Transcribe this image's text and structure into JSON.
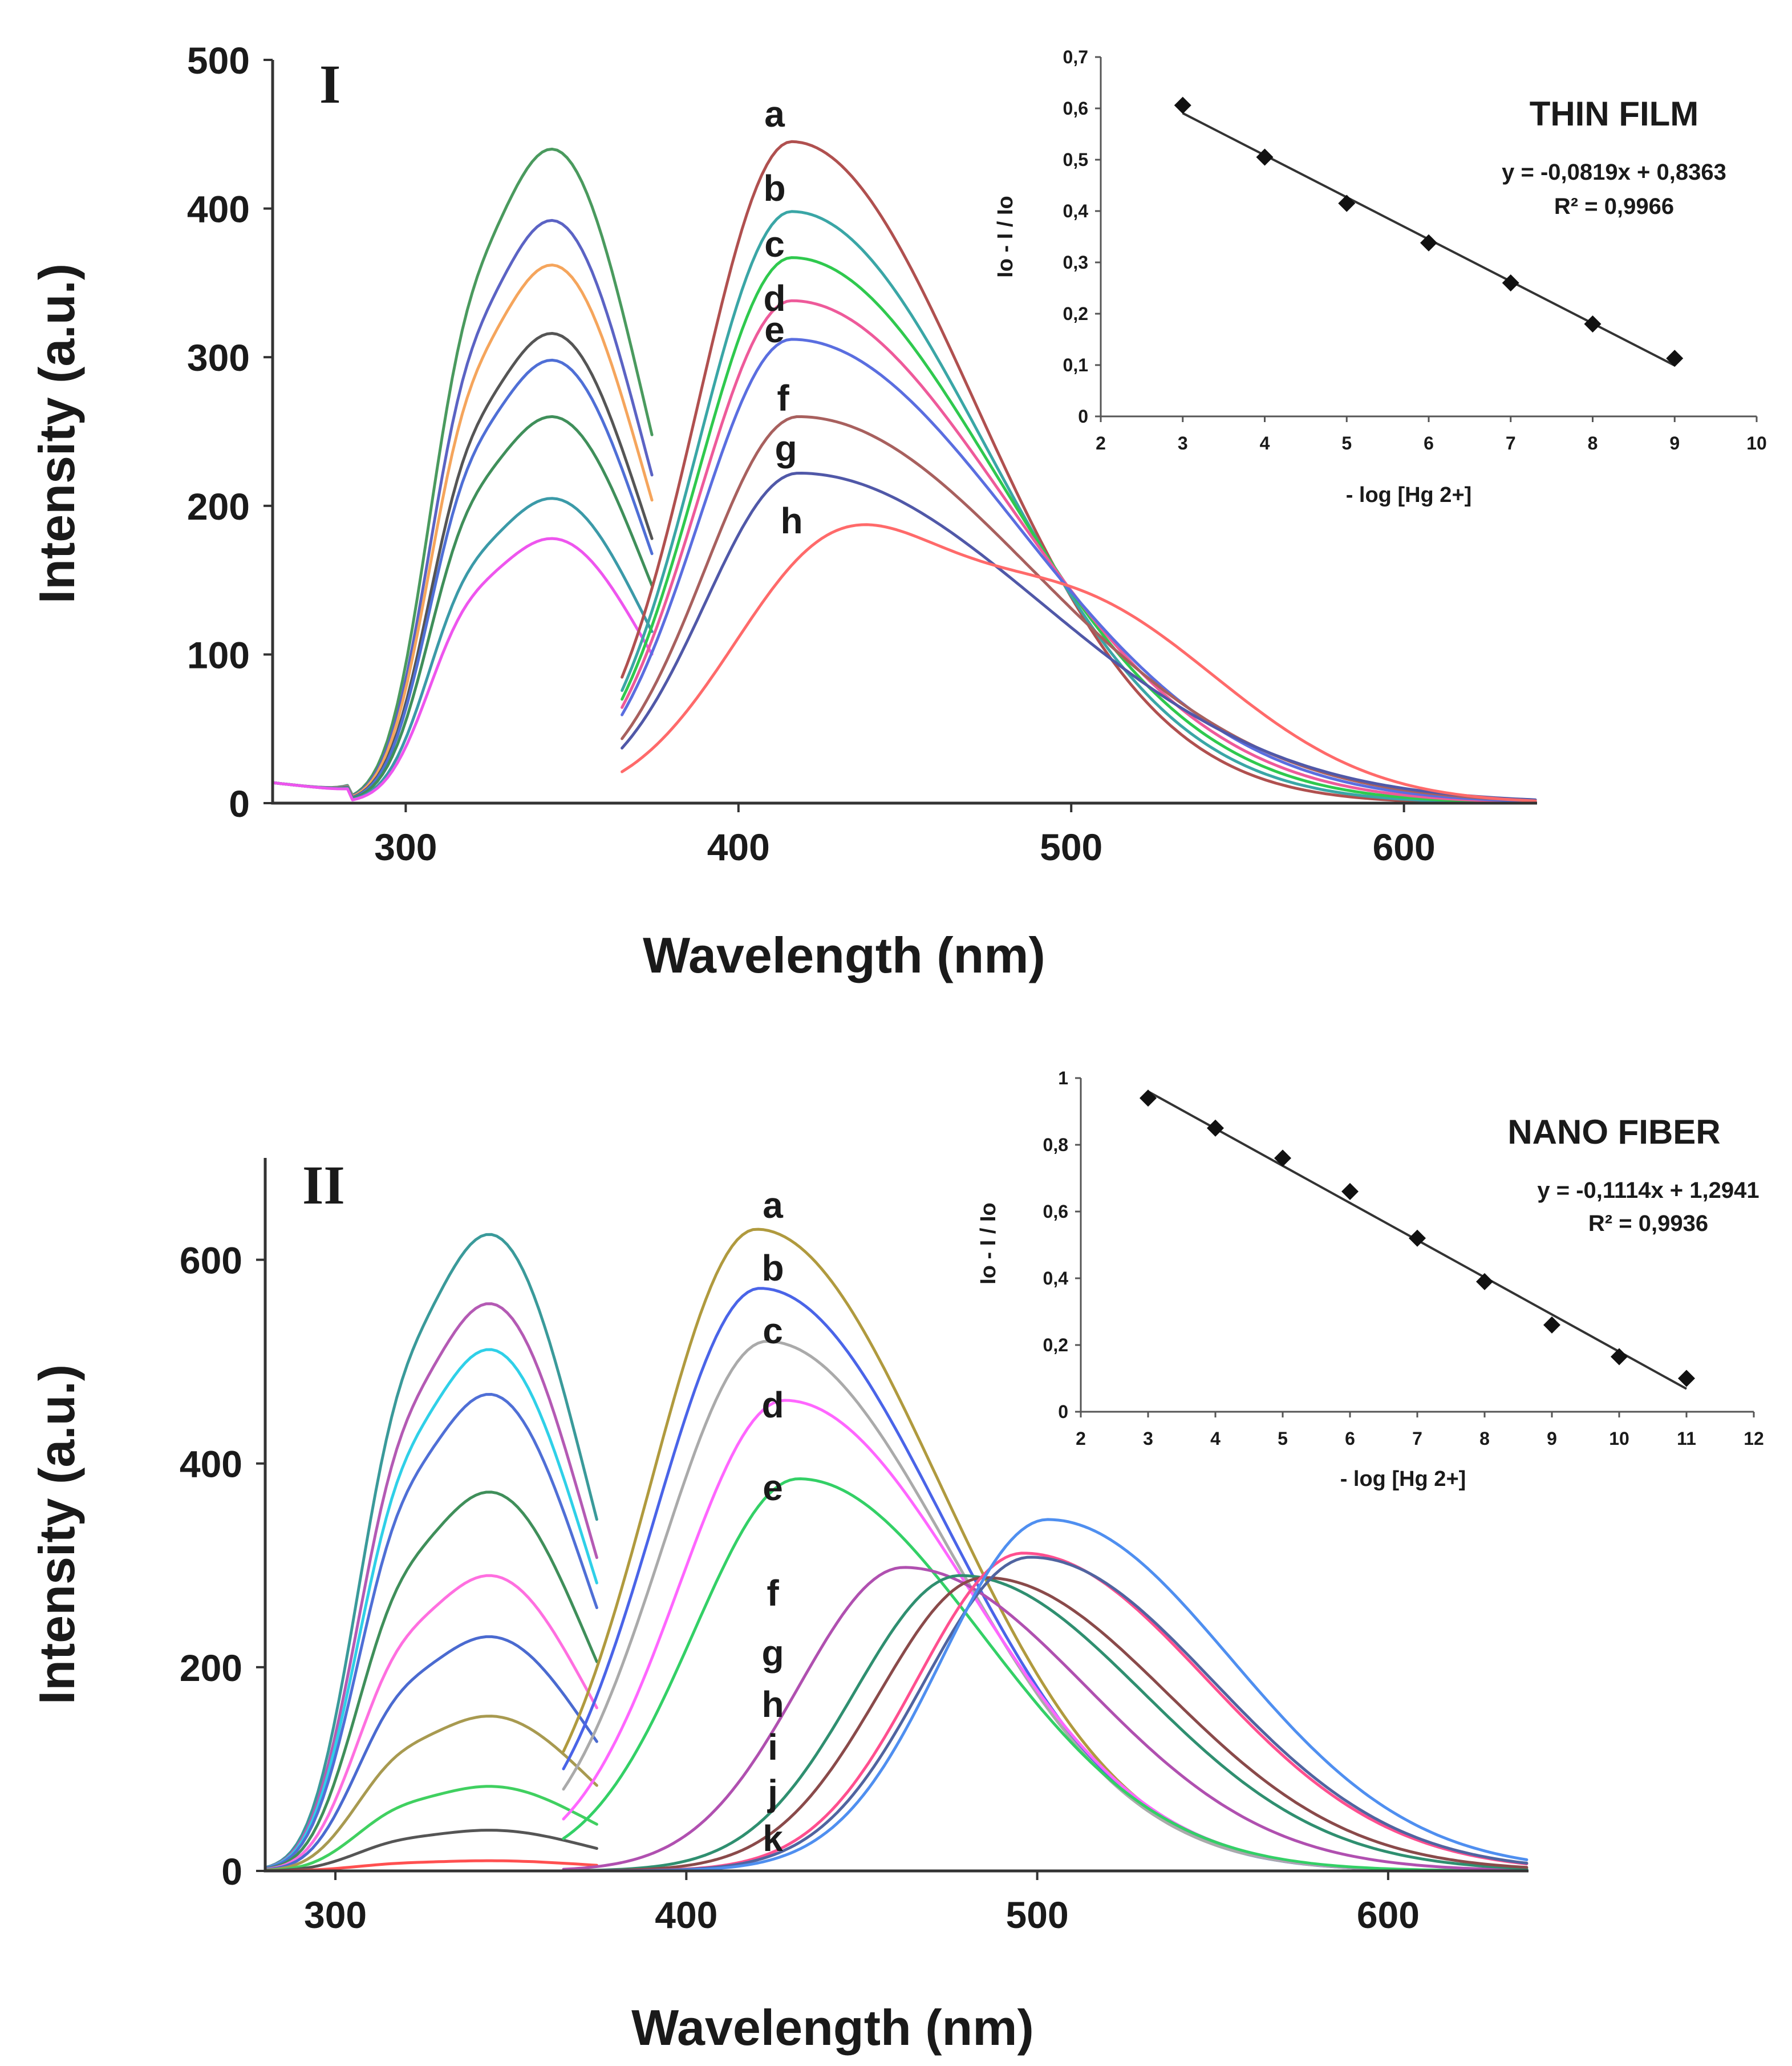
{
  "chart_data": [
    {
      "type": "line",
      "panel_label": "I",
      "xlabel": "Wavelength (nm)",
      "ylabel": "Intensity (a.u.)",
      "xlim": [
        260,
        640
      ],
      "ylim": [
        0,
        500
      ],
      "xticks": [
        300,
        400,
        500,
        600
      ],
      "yticks": [
        0,
        100,
        200,
        300,
        400,
        500
      ],
      "excitation": {
        "x_range": [
          260,
          375
        ],
        "series": [
          {
            "name": "a",
            "color": "#4a9a5e",
            "peak": 440
          },
          {
            "name": "b",
            "color": "#5b63c4",
            "peak": 392
          },
          {
            "name": "c",
            "color": "#f5a55c",
            "peak": 362
          },
          {
            "name": "d",
            "color": "#555555",
            "peak": 316
          },
          {
            "name": "e",
            "color": "#4f6fd6",
            "peak": 298
          },
          {
            "name": "f",
            "color": "#3f8f5a",
            "peak": 260
          },
          {
            "name": "g",
            "color": "#3b9aa8",
            "peak": 205
          },
          {
            "name": "h",
            "color": "#ee55ee",
            "peak": 178
          }
        ]
      },
      "emission": {
        "x_range": [
          365,
          640
        ],
        "series": [
          {
            "name": "a",
            "color": "#b0504f",
            "peak": 445,
            "peak_x": 416
          },
          {
            "name": "b",
            "color": "#3aa6a6",
            "peak": 398,
            "peak_x": 416
          },
          {
            "name": "c",
            "color": "#2fc94e",
            "peak": 367,
            "peak_x": 416
          },
          {
            "name": "d",
            "color": "#ee5a9a",
            "peak": 338,
            "peak_x": 416
          },
          {
            "name": "e",
            "color": "#5a6ee0",
            "peak": 312,
            "peak_x": 416
          },
          {
            "name": "f",
            "color": "#a8605e",
            "peak": 260,
            "peak_x": 418
          },
          {
            "name": "g",
            "color": "#5058a8",
            "peak": 222,
            "peak_x": 418
          },
          {
            "name": "h",
            "color": "#ff6a6a",
            "peak": 178,
            "peak_x": 425
          }
        ]
      },
      "inset": {
        "title": "THIN FILM",
        "xlabel": "- log [Hg 2+]",
        "ylabel": "Io - I / Io",
        "xlim": [
          2,
          10
        ],
        "ylim": [
          0,
          0.7
        ],
        "xticks": [
          "2",
          "3",
          "4",
          "5",
          "6",
          "7",
          "8",
          "9",
          "10"
        ],
        "yticks": [
          "0",
          "0,1",
          "0,2",
          "0,3",
          "0,4",
          "0,5",
          "0,6",
          "0,7"
        ],
        "points_x": [
          3,
          4,
          5,
          6,
          7,
          8,
          9
        ],
        "points_y": [
          0.606,
          0.505,
          0.415,
          0.338,
          0.26,
          0.18,
          0.113
        ],
        "fit_slope": -0.0819,
        "fit_intercept": 0.8363,
        "equation": "y = -0,0819x + 0,8363",
        "r2": "R² = 0,9966"
      }
    },
    {
      "type": "line",
      "panel_label": "II",
      "xlabel": "Wavelength (nm)",
      "ylabel": "Intensity (a.u.)",
      "xlim": [
        280,
        640
      ],
      "ylim": [
        0,
        700
      ],
      "xticks": [
        300,
        400,
        500,
        600
      ],
      "yticks": [
        0,
        200,
        400,
        600
      ],
      "excitation": {
        "x_range": [
          280,
          375
        ],
        "series": [
          {
            "name": "a",
            "color": "#3a9a9a",
            "peak": 625
          },
          {
            "name": "b",
            "color": "#b45ab4",
            "peak": 557
          },
          {
            "name": "c",
            "color": "#2fd0e8",
            "peak": 512
          },
          {
            "name": "d",
            "color": "#4f6fd6",
            "peak": 468
          },
          {
            "name": "e",
            "color": "#3f8f5a",
            "peak": 372
          },
          {
            "name": "f",
            "color": "#ff6fe0",
            "peak": 290
          },
          {
            "name": "g",
            "color": "#4a6ad0",
            "peak": 230
          },
          {
            "name": "h",
            "color": "#a89a50",
            "peak": 152
          },
          {
            "name": "i",
            "color": "#40d060",
            "peak": 83
          },
          {
            "name": "j",
            "color": "#555555",
            "peak": 40
          },
          {
            "name": "k",
            "color": "#ff5050",
            "peak": 10
          }
        ]
      },
      "emission": {
        "x_range": [
          365,
          640
        ],
        "series": [
          {
            "name": "a",
            "color": "#b09a3e",
            "peak": 630,
            "peak_x": 420
          },
          {
            "name": "b",
            "color": "#4a64e8",
            "peak": 572,
            "peak_x": 421
          },
          {
            "name": "c",
            "color": "#aaaaaa",
            "peak": 520,
            "peak_x": 423
          },
          {
            "name": "d",
            "color": "#ff66ff",
            "peak": 462,
            "peak_x": 428
          },
          {
            "name": "e",
            "color": "#33d066",
            "peak": 385,
            "peak_x": 432
          },
          {
            "name": "f",
            "color": "#b050b0",
            "peak": 298,
            "peak_x": 462
          },
          {
            "name": "g",
            "color": "#2f8f70",
            "peak": 290,
            "peak_x": 478
          },
          {
            "name": "h",
            "color": "#8a4a4a",
            "peak": 288,
            "peak_x": 485
          },
          {
            "name": "i",
            "color": "#ff4f8f",
            "peak": 312,
            "peak_x": 496
          },
          {
            "name": "j",
            "color": "#5064a0",
            "peak": 308,
            "peak_x": 498
          },
          {
            "name": "k",
            "color": "#4f8ff0",
            "peak": 345,
            "peak_x": 503
          }
        ]
      },
      "inset": {
        "title": "NANO FIBER",
        "xlabel": "- log [Hg 2+]",
        "ylabel": "Io - I / Io",
        "xlim": [
          2,
          12
        ],
        "ylim": [
          0,
          1
        ],
        "xticks": [
          "2",
          "3",
          "4",
          "5",
          "6",
          "7",
          "8",
          "9",
          "10",
          "11",
          "12"
        ],
        "yticks": [
          "0",
          "0,2",
          "0,4",
          "0,6",
          "0,8",
          "1"
        ],
        "points_x": [
          3,
          4,
          5,
          6,
          7,
          8,
          9,
          10,
          11
        ],
        "points_y": [
          0.94,
          0.85,
          0.76,
          0.66,
          0.52,
          0.39,
          0.26,
          0.165,
          0.1
        ],
        "fit_slope": -0.1114,
        "fit_intercept": 1.2941,
        "equation": "y = -0,1114x + 1,2941",
        "r2": "R² = 0,9936"
      }
    }
  ]
}
